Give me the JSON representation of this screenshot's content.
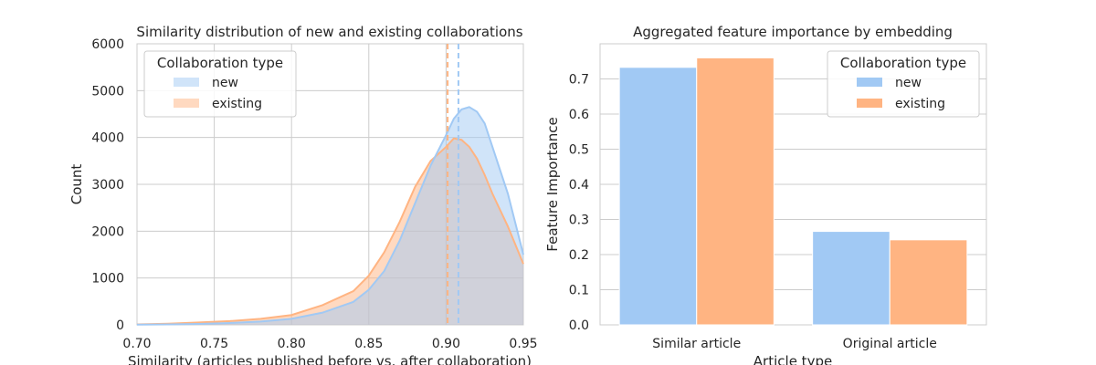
{
  "chart_data": [
    {
      "type": "area",
      "title": "Similarity distribution of new and existing collaborations",
      "xlabel": "Similarity (articles published before vs. after collaboration)",
      "ylabel": "Count",
      "xlim": [
        0.7,
        0.95
      ],
      "ylim": [
        0,
        6000
      ],
      "x_ticks": [
        "0.70",
        "0.75",
        "0.80",
        "0.85",
        "0.90",
        "0.95"
      ],
      "y_ticks": [
        "0",
        "1000",
        "2000",
        "3000",
        "4000",
        "5000",
        "6000"
      ],
      "grid": true,
      "legend": {
        "title": "Collaboration type",
        "placement": "top-left",
        "entries": [
          "new",
          "existing"
        ]
      },
      "series": [
        {
          "name": "new",
          "color": "#a1c9f4",
          "x": [
            0.7,
            0.72,
            0.74,
            0.76,
            0.78,
            0.8,
            0.82,
            0.84,
            0.85,
            0.86,
            0.87,
            0.88,
            0.89,
            0.9,
            0.905,
            0.91,
            0.915,
            0.92,
            0.925,
            0.93,
            0.94,
            0.95
          ],
          "y": [
            5,
            10,
            20,
            40,
            70,
            130,
            260,
            490,
            750,
            1150,
            1800,
            2600,
            3400,
            4050,
            4400,
            4600,
            4650,
            4550,
            4300,
            3800,
            2800,
            1500
          ],
          "mean_line": 0.908
        },
        {
          "name": "existing",
          "color": "#ffb482",
          "x": [
            0.7,
            0.72,
            0.74,
            0.76,
            0.78,
            0.8,
            0.82,
            0.84,
            0.85,
            0.86,
            0.87,
            0.88,
            0.89,
            0.9,
            0.905,
            0.91,
            0.915,
            0.92,
            0.925,
            0.93,
            0.94,
            0.95
          ],
          "y": [
            10,
            25,
            50,
            80,
            130,
            210,
            420,
            720,
            1050,
            1550,
            2200,
            2950,
            3500,
            3800,
            3980,
            3950,
            3800,
            3550,
            3200,
            2800,
            2100,
            1300
          ],
          "mean_line": 0.901
        }
      ]
    },
    {
      "type": "bar",
      "title": "Aggregated feature importance by embedding",
      "xlabel": "Article type",
      "ylabel": "Feature Importance",
      "categories": [
        "Similar article",
        "Original article"
      ],
      "ylim": [
        0,
        0.8
      ],
      "y_ticks": [
        "0.0",
        "0.1",
        "0.2",
        "0.3",
        "0.4",
        "0.5",
        "0.6",
        "0.7"
      ],
      "grid": true,
      "legend": {
        "title": "Collaboration type",
        "placement": "top-right",
        "entries": [
          "new",
          "existing"
        ]
      },
      "series": [
        {
          "name": "new",
          "color": "#a1c9f4",
          "values": [
            0.733,
            0.266
          ]
        },
        {
          "name": "existing",
          "color": "#ffb482",
          "values": [
            0.76,
            0.242
          ]
        }
      ]
    }
  ]
}
